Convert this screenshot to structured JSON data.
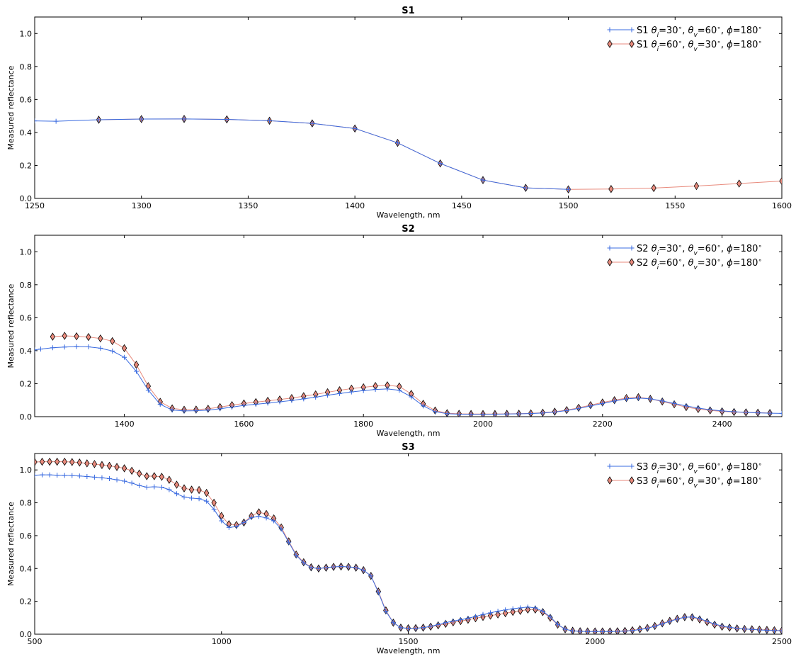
{
  "chart_data": [
    {
      "type": "line",
      "title": "S1",
      "xlabel": "Wavelength, nm",
      "ylabel": "Measured reflectance",
      "xlim": [
        1250,
        1600
      ],
      "ylim": [
        0,
        1.1
      ],
      "xticks": [
        1250,
        1300,
        1350,
        1400,
        1450,
        1500,
        1550,
        1600
      ],
      "yticks": [
        0.0,
        0.2,
        0.4,
        0.6,
        0.8,
        1.0
      ],
      "legend_position": "top-right",
      "series": [
        {
          "name": "S1 θi=30°, θv=60°, ϕ=180°",
          "marker": "plus",
          "color": "#3a6be0",
          "x": [
            1250,
            1260,
            1280,
            1300,
            1320,
            1340,
            1360,
            1380,
            1400,
            1420,
            1440,
            1460,
            1480,
            1500
          ],
          "y": [
            0.47,
            0.468,
            0.477,
            0.481,
            0.482,
            0.479,
            0.471,
            0.455,
            0.424,
            0.337,
            0.212,
            0.111,
            0.064,
            0.055
          ]
        },
        {
          "name": "S1 θi=60°, θv=30°, ϕ=180°",
          "marker": "diamond",
          "color": "#e88a7c",
          "x": [
            1280,
            1300,
            1320,
            1340,
            1360,
            1380,
            1400,
            1420,
            1440,
            1460,
            1480,
            1500,
            1520,
            1540,
            1560,
            1580,
            1600
          ],
          "y": [
            0.477,
            0.481,
            0.482,
            0.479,
            0.471,
            0.455,
            0.424,
            0.337,
            0.212,
            0.111,
            0.064,
            0.055,
            0.057,
            0.063,
            0.075,
            0.09,
            0.105
          ]
        }
      ]
    },
    {
      "type": "line",
      "title": "S2",
      "xlabel": "Wavelength, nm",
      "ylabel": "Measured reflectance",
      "xlim": [
        1250,
        2500
      ],
      "ylim": [
        0,
        1.1
      ],
      "xticks": [
        1400,
        1600,
        1800,
        2000,
        2200,
        2400
      ],
      "yticks": [
        0.0,
        0.2,
        0.4,
        0.6,
        0.8,
        1.0
      ],
      "legend_position": "top-right",
      "series": [
        {
          "name": "S2 θi=30°, θv=60°, ϕ=180°",
          "marker": "plus",
          "color": "#3a6be0",
          "x": [
            1250,
            1260,
            1280,
            1300,
            1320,
            1340,
            1360,
            1380,
            1400,
            1420,
            1440,
            1460,
            1480,
            1500,
            1520,
            1540,
            1560,
            1580,
            1600,
            1620,
            1640,
            1660,
            1680,
            1700,
            1720,
            1740,
            1760,
            1780,
            1800,
            1820,
            1840,
            1860,
            1880,
            1900,
            1920,
            1940,
            1960,
            1980,
            2000,
            2020,
            2040,
            2060,
            2080,
            2100,
            2120,
            2140,
            2160,
            2180,
            2200,
            2220,
            2240,
            2260,
            2280,
            2300,
            2320,
            2340,
            2360,
            2380,
            2400,
            2420,
            2440,
            2460,
            2480,
            2500
          ],
          "y": [
            0.405,
            0.41,
            0.418,
            0.422,
            0.425,
            0.423,
            0.415,
            0.398,
            0.36,
            0.275,
            0.16,
            0.075,
            0.04,
            0.035,
            0.036,
            0.04,
            0.048,
            0.058,
            0.068,
            0.075,
            0.082,
            0.09,
            0.098,
            0.108,
            0.118,
            0.13,
            0.14,
            0.15,
            0.158,
            0.165,
            0.168,
            0.16,
            0.12,
            0.065,
            0.03,
            0.018,
            0.015,
            0.014,
            0.014,
            0.015,
            0.016,
            0.017,
            0.019,
            0.022,
            0.028,
            0.037,
            0.05,
            0.065,
            0.08,
            0.095,
            0.108,
            0.113,
            0.108,
            0.095,
            0.08,
            0.065,
            0.052,
            0.042,
            0.035,
            0.03,
            0.026,
            0.023,
            0.021,
            0.02
          ]
        },
        {
          "name": "S2 θi=60°, θv=30°, ϕ=180°",
          "marker": "diamond",
          "color": "#e88a7c",
          "x": [
            1280,
            1300,
            1320,
            1340,
            1360,
            1380,
            1400,
            1420,
            1440,
            1460,
            1480,
            1500,
            1520,
            1540,
            1560,
            1580,
            1600,
            1620,
            1640,
            1660,
            1680,
            1700,
            1720,
            1740,
            1760,
            1780,
            1800,
            1820,
            1840,
            1860,
            1880,
            1900,
            1920,
            1940,
            1960,
            1980,
            2000,
            2020,
            2040,
            2060,
            2080,
            2100,
            2120,
            2140,
            2160,
            2180,
            2200,
            2220,
            2240,
            2260,
            2280,
            2300,
            2320,
            2340,
            2360,
            2380,
            2400,
            2420,
            2440,
            2460,
            2480
          ],
          "y": [
            0.485,
            0.49,
            0.487,
            0.483,
            0.474,
            0.458,
            0.415,
            0.315,
            0.185,
            0.09,
            0.05,
            0.042,
            0.043,
            0.048,
            0.058,
            0.07,
            0.08,
            0.088,
            0.096,
            0.104,
            0.113,
            0.124,
            0.135,
            0.148,
            0.16,
            0.17,
            0.178,
            0.186,
            0.19,
            0.183,
            0.138,
            0.078,
            0.037,
            0.021,
            0.017,
            0.016,
            0.016,
            0.016,
            0.017,
            0.018,
            0.02,
            0.024,
            0.03,
            0.04,
            0.054,
            0.07,
            0.086,
            0.1,
            0.113,
            0.118,
            0.108,
            0.092,
            0.075,
            0.058,
            0.046,
            0.038,
            0.032,
            0.028,
            0.026,
            0.024,
            0.022
          ]
        }
      ]
    },
    {
      "type": "line",
      "title": "S3",
      "xlabel": "Wavelength, nm",
      "ylabel": "Measured reflectance",
      "xlim": [
        500,
        2500
      ],
      "ylim": [
        0,
        1.1
      ],
      "xticks": [
        500,
        1000,
        1500,
        2000,
        2500
      ],
      "yticks": [
        0.0,
        0.2,
        0.4,
        0.6,
        0.8,
        1.0
      ],
      "legend_position": "top-right",
      "series": [
        {
          "name": "S3 θi=30°, θv=60°, ϕ=180°",
          "marker": "plus",
          "color": "#3a6be0",
          "x": [
            500,
            520,
            540,
            560,
            580,
            600,
            620,
            640,
            660,
            680,
            700,
            720,
            740,
            760,
            780,
            800,
            820,
            840,
            860,
            880,
            900,
            920,
            940,
            960,
            980,
            1000,
            1020,
            1040,
            1060,
            1080,
            1100,
            1120,
            1140,
            1160,
            1180,
            1200,
            1220,
            1240,
            1260,
            1280,
            1300,
            1320,
            1340,
            1360,
            1380,
            1400,
            1420,
            1440,
            1460,
            1480,
            1500,
            1520,
            1540,
            1560,
            1580,
            1600,
            1620,
            1640,
            1660,
            1680,
            1700,
            1720,
            1740,
            1760,
            1780,
            1800,
            1820,
            1840,
            1860,
            1880,
            1900,
            1920,
            1940,
            1960,
            1980,
            2000,
            2020,
            2040,
            2060,
            2080,
            2100,
            2120,
            2140,
            2160,
            2180,
            2200,
            2220,
            2240,
            2260,
            2280,
            2300,
            2320,
            2340,
            2360,
            2380,
            2400,
            2420,
            2440,
            2460,
            2480,
            2500
          ],
          "y": [
            0.968,
            0.97,
            0.97,
            0.968,
            0.967,
            0.966,
            0.963,
            0.96,
            0.956,
            0.952,
            0.947,
            0.94,
            0.932,
            0.92,
            0.905,
            0.895,
            0.897,
            0.895,
            0.88,
            0.855,
            0.835,
            0.828,
            0.825,
            0.81,
            0.76,
            0.69,
            0.65,
            0.655,
            0.68,
            0.71,
            0.717,
            0.708,
            0.69,
            0.64,
            0.56,
            0.48,
            0.435,
            0.405,
            0.4,
            0.405,
            0.41,
            0.412,
            0.41,
            0.405,
            0.39,
            0.355,
            0.255,
            0.14,
            0.07,
            0.04,
            0.035,
            0.036,
            0.04,
            0.048,
            0.058,
            0.07,
            0.08,
            0.088,
            0.097,
            0.108,
            0.12,
            0.13,
            0.14,
            0.148,
            0.155,
            0.16,
            0.165,
            0.16,
            0.14,
            0.105,
            0.06,
            0.03,
            0.02,
            0.018,
            0.016,
            0.016,
            0.016,
            0.016,
            0.017,
            0.019,
            0.022,
            0.028,
            0.036,
            0.048,
            0.063,
            0.078,
            0.092,
            0.103,
            0.105,
            0.095,
            0.078,
            0.062,
            0.05,
            0.042,
            0.036,
            0.032,
            0.029,
            0.026,
            0.024,
            0.022,
            0.021
          ]
        },
        {
          "name": "S3 θi=60°, θv=30°, ϕ=180°",
          "marker": "diamond",
          "color": "#e88a7c",
          "x": [
            500,
            520,
            540,
            560,
            580,
            600,
            620,
            640,
            660,
            680,
            700,
            720,
            740,
            760,
            780,
            800,
            820,
            840,
            860,
            880,
            900,
            920,
            940,
            960,
            980,
            1000,
            1020,
            1040,
            1060,
            1080,
            1100,
            1120,
            1140,
            1160,
            1180,
            1200,
            1220,
            1240,
            1260,
            1280,
            1300,
            1320,
            1340,
            1360,
            1380,
            1400,
            1420,
            1440,
            1460,
            1480,
            1500,
            1520,
            1540,
            1560,
            1580,
            1600,
            1620,
            1640,
            1660,
            1680,
            1700,
            1720,
            1740,
            1760,
            1780,
            1800,
            1820,
            1840,
            1860,
            1880,
            1900,
            1920,
            1940,
            1960,
            1980,
            2000,
            2020,
            2040,
            2060,
            2080,
            2100,
            2120,
            2140,
            2160,
            2180,
            2200,
            2220,
            2240,
            2260,
            2280,
            2300,
            2320,
            2340,
            2360,
            2380,
            2400,
            2420,
            2440,
            2460,
            2480,
            2500
          ],
          "y": [
            1.048,
            1.05,
            1.05,
            1.05,
            1.05,
            1.048,
            1.045,
            1.04,
            1.036,
            1.03,
            1.025,
            1.018,
            1.01,
            0.995,
            0.978,
            0.962,
            0.962,
            0.958,
            0.94,
            0.91,
            0.888,
            0.88,
            0.878,
            0.86,
            0.8,
            0.72,
            0.67,
            0.665,
            0.68,
            0.72,
            0.742,
            0.732,
            0.705,
            0.65,
            0.565,
            0.485,
            0.438,
            0.407,
            0.4,
            0.405,
            0.41,
            0.412,
            0.41,
            0.405,
            0.39,
            0.355,
            0.26,
            0.145,
            0.07,
            0.04,
            0.036,
            0.037,
            0.04,
            0.046,
            0.054,
            0.063,
            0.072,
            0.08,
            0.088,
            0.097,
            0.105,
            0.113,
            0.12,
            0.128,
            0.136,
            0.142,
            0.15,
            0.15,
            0.135,
            0.1,
            0.058,
            0.03,
            0.021,
            0.018,
            0.017,
            0.017,
            0.017,
            0.017,
            0.018,
            0.02,
            0.024,
            0.03,
            0.038,
            0.05,
            0.066,
            0.081,
            0.094,
            0.104,
            0.103,
            0.09,
            0.074,
            0.058,
            0.046,
            0.04,
            0.035,
            0.032,
            0.03,
            0.028,
            0.026,
            0.024,
            0.022
          ]
        }
      ]
    }
  ]
}
